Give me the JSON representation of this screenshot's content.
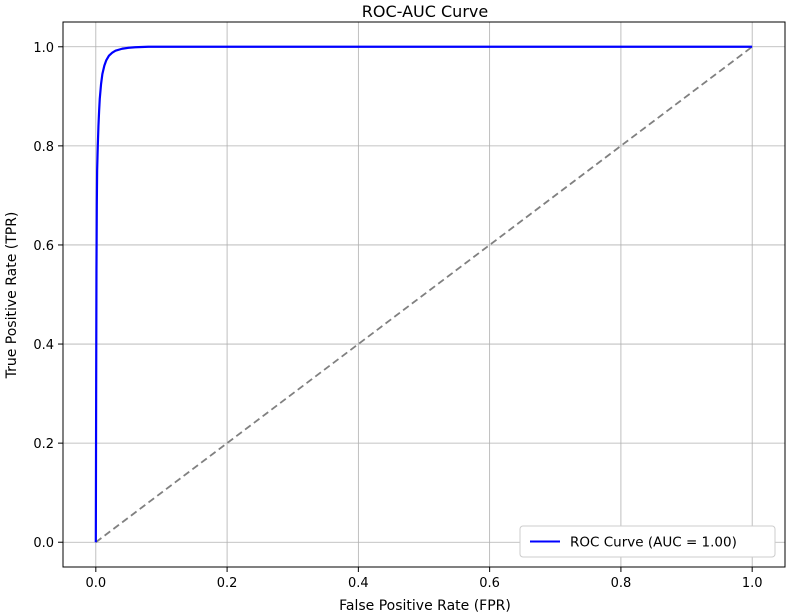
{
  "chart_data": {
    "type": "line",
    "title": "ROC-AUC Curve",
    "xlabel": "False Positive Rate (FPR)",
    "ylabel": "True Positive Rate (TPR)",
    "xlim": [
      -0.05,
      1.05
    ],
    "ylim": [
      -0.05,
      1.05
    ],
    "xticks": [
      "0.0",
      "0.2",
      "0.4",
      "0.6",
      "0.8",
      "1.0"
    ],
    "yticks": [
      "0.0",
      "0.2",
      "0.4",
      "0.6",
      "0.8",
      "1.0"
    ],
    "grid": true,
    "legend_position": "lower-right",
    "series": [
      {
        "name": "ROC Curve (AUC = 1.00)",
        "color": "#0000ff",
        "style": "solid",
        "x": [
          0.0,
          0.0005,
          0.001,
          0.0015,
          0.002,
          0.003,
          0.004,
          0.005,
          0.006,
          0.008,
          0.01,
          0.013,
          0.016,
          0.02,
          0.025,
          0.03,
          0.04,
          0.05,
          0.06,
          0.08,
          0.1,
          0.2,
          0.4,
          0.6,
          0.8,
          1.0
        ],
        "y": [
          0.0,
          0.3,
          0.55,
          0.68,
          0.75,
          0.8,
          0.84,
          0.87,
          0.895,
          0.925,
          0.945,
          0.962,
          0.973,
          0.982,
          0.988,
          0.992,
          0.996,
          0.998,
          0.999,
          1.0,
          1.0,
          1.0,
          1.0,
          1.0,
          1.0,
          1.0
        ]
      },
      {
        "name": "",
        "color": "#808080",
        "style": "dashed",
        "x": [
          0.0,
          1.0
        ],
        "y": [
          0.0,
          1.0
        ]
      }
    ]
  }
}
